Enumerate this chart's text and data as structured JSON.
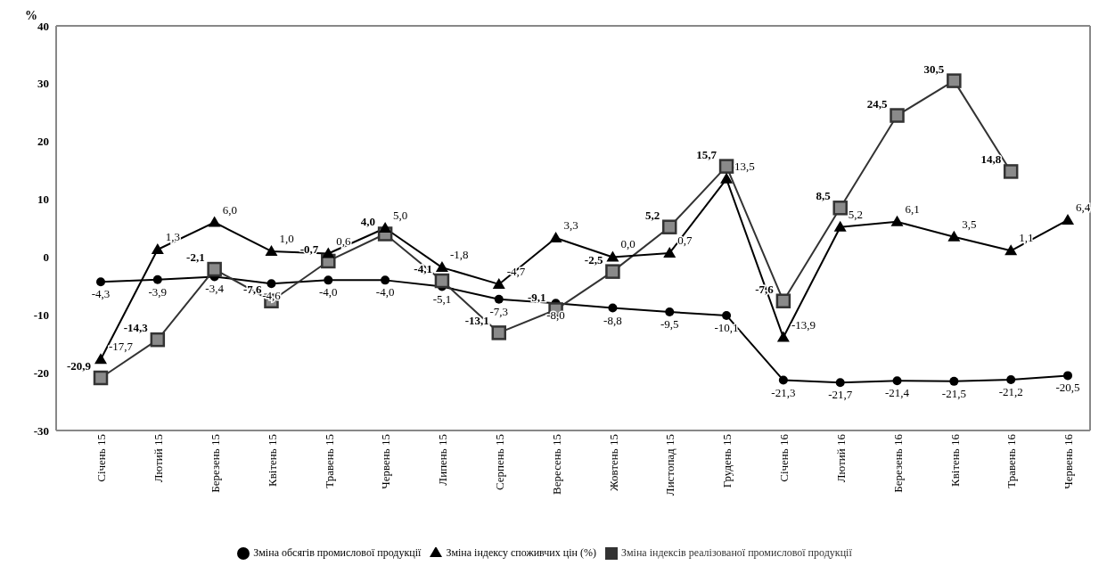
{
  "chart_data": {
    "type": "line",
    "ylabel": "%",
    "categories": [
      "Січень 15",
      "Лютий 15",
      "Березень 15",
      "Квітень 15",
      "Травень 15",
      "Червень 15",
      "Липень 15",
      "Серпень 15",
      "Вересень 15",
      "Жовтень 15",
      "Листопад 15",
      "Грудень 15",
      "Січень 16",
      "Лютий 16",
      "Березень 16",
      "Квітень 16",
      "Травень 16",
      "Червень 16"
    ],
    "series": [
      {
        "name": "Зміна обсягів промислової продукції",
        "color": "#000000",
        "marker": "circle",
        "values": [
          -4.3,
          -3.9,
          -3.4,
          -4.6,
          -4.0,
          -4.0,
          -5.1,
          -7.3,
          -8.0,
          -8.8,
          -9.5,
          -10.1,
          -21.3,
          -21.7,
          -21.4,
          -21.5,
          -21.2,
          -20.5
        ],
        "value_labels": [
          "-4,3",
          "-3,9",
          "-3,4",
          "-4,6",
          "-4,0",
          "-4,0",
          "-5,1",
          "-7,3",
          "-8,0",
          "-8,8",
          "-9,5",
          "-10,1",
          "-21,3",
          "-21,7",
          "-21,4",
          "-21,5",
          "-21,2",
          "-20,5"
        ]
      },
      {
        "name": "Зміна індексів реалізованої промислової продукції",
        "color": "#333333",
        "marker": "square",
        "values": [
          -20.9,
          -14.3,
          -2.1,
          -7.6,
          -0.7,
          4.0,
          -4.1,
          -13.1,
          -9.1,
          -2.5,
          5.2,
          15.7,
          -7.6,
          8.5,
          24.5,
          30.5,
          14.8,
          null
        ],
        "value_labels": [
          "-20,9",
          "-14,3",
          "-2,1",
          "-7,6",
          "-0,7",
          "4,0",
          "-4,1",
          "-13,1",
          "-9,1",
          "-2,5",
          "5,2",
          "15,7",
          "-7,6",
          "8,5",
          "24,5",
          "30,5",
          "14,8",
          null
        ]
      },
      {
        "name": "Зміна індексу споживчих цін (%)",
        "color": "#000000",
        "marker": "triangle",
        "values": [
          -17.7,
          1.3,
          6.0,
          1.0,
          0.6,
          5.0,
          -1.8,
          -4.7,
          3.3,
          0.0,
          0.7,
          13.5,
          -13.9,
          5.2,
          6.1,
          3.5,
          1.1,
          6.4
        ],
        "value_labels": [
          "-17,7",
          "1,3",
          "6,0",
          "1,0",
          "0,6",
          "5,0",
          "-1,8",
          "-4,7",
          "3,3",
          "0,0",
          "0,7",
          "13,5",
          "-13,9",
          "5,2",
          "6,1",
          "3,5",
          "1,1",
          "6,4"
        ]
      }
    ],
    "ylim": [
      -30,
      40
    ],
    "yticks": [
      -30,
      -20,
      -10,
      0,
      10,
      20,
      30,
      40
    ],
    "grid": false,
    "legend": "bottom",
    "line_style": "solid"
  }
}
